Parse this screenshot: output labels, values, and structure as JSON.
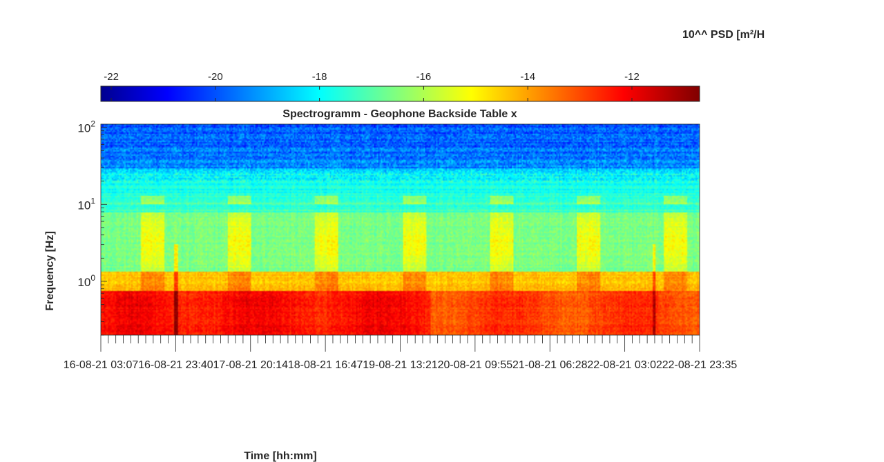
{
  "chart_data": {
    "type": "heatmap",
    "title": "Spectrogramm - Geophone Backside Table x",
    "xlabel": "Time [hh:mm]",
    "ylabel": "Frequency [Hz]",
    "colorbar_label": "10^^ PSD [m²/H",
    "colormap": "jet",
    "colormap_stops": [
      "#00008f",
      "#0000ff",
      "#00ffff",
      "#ffff00",
      "#ff0000",
      "#800000"
    ],
    "colorbar": {
      "range": [
        -22.2,
        -10.7
      ],
      "ticks": [
        -22,
        -20,
        -18,
        -16,
        -14,
        -12
      ],
      "tick_labels": [
        "-22",
        "-20",
        "-18",
        "-16",
        "-14",
        "-12"
      ]
    },
    "x_axis": {
      "range": [
        "16-08-21 03:07",
        "22-08-21 23:35"
      ],
      "tick_labels": [
        "16-08-21 03:07",
        "16-08-21 23:40",
        "17-08-21 20:14",
        "18-08-21 16:47",
        "19-08-21 13:21",
        "20-08-21 09:55",
        "21-08-21 06:28",
        "22-08-21 03:02",
        "22-08-21 23:35"
      ]
    },
    "y_axis": {
      "scale": "log",
      "range": [
        0.2,
        110
      ],
      "ticks": [
        1,
        10,
        100
      ],
      "tick_labels": [
        {
          "base": "10",
          "exp": "0"
        },
        {
          "base": "10",
          "exp": "1"
        },
        {
          "base": "10",
          "exp": "2"
        }
      ]
    },
    "description_of_pattern": [
      {
        "band": "0.2-0.8 Hz",
        "level": -12.5
      },
      {
        "band": "0.8-1.5 Hz",
        "level": -14.5
      },
      {
        "band": "1.5-10 Hz",
        "level": -16.5
      },
      {
        "band": "10-30 Hz",
        "level": -17.5
      },
      {
        "band": "30-110 Hz",
        "level": -19.5
      }
    ]
  }
}
